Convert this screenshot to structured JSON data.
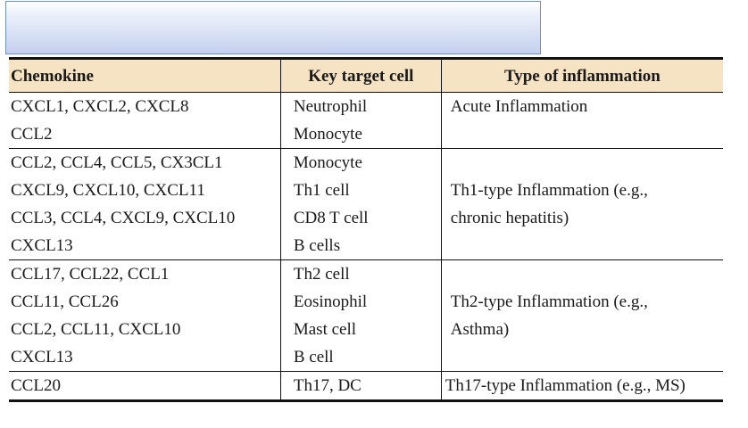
{
  "table": {
    "headers": [
      "Chemokine",
      "Key target cell",
      "Type of inflammation"
    ],
    "groups": [
      {
        "chemokines": [
          "CXCL1, CXCL2, CXCL8",
          "CCL2"
        ],
        "targets": [
          "Neutrophil",
          "Monocyte"
        ],
        "inflammation": [
          "Acute Inflammation"
        ]
      },
      {
        "chemokines": [
          "CCL2, CCL4, CCL5, CX3CL1",
          "CXCL9, CXCL10, CXCL11",
          "CCL3, CCL4, CXCL9, CXCL10",
          "CXCL13"
        ],
        "targets": [
          "Monocyte",
          "Th1 cell",
          "CD8 T cell",
          "B cells"
        ],
        "inflammation": [
          "Th1-type Inflammation (e.g.,",
          " chronic hepatitis)"
        ]
      },
      {
        "chemokines": [
          "CCL17, CCL22, CCL1",
          "CCL11, CCL26",
          "CCL2, CCL11, CXCL10",
          "CXCL13"
        ],
        "targets": [
          "Th2 cell",
          "Eosinophil",
          "Mast cell",
          "B cell"
        ],
        "inflammation": [
          "Th2-type Inflammation (e.g.,",
          " Asthma)"
        ]
      },
      {
        "chemokines": [
          "CCL20"
        ],
        "targets": [
          "Th17, DC"
        ],
        "inflammation": [
          "Th17-type Inflammation (e.g., MS)"
        ]
      }
    ]
  }
}
